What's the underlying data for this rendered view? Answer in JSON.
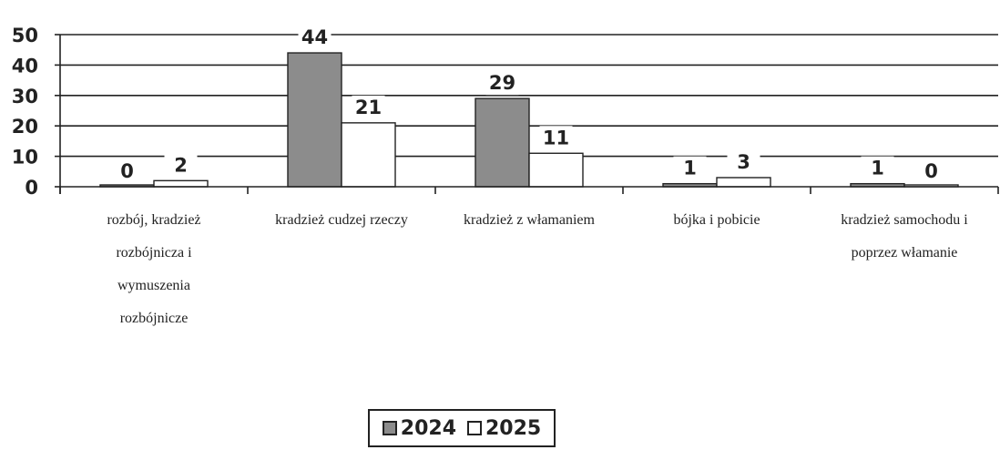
{
  "chart_data": {
    "type": "bar",
    "categories": [
      [
        "rozbój, kradzież",
        "rozbójnicza i",
        "wymuszenia",
        "rozbójnicze"
      ],
      [
        "kradzież cudzej rzeczy"
      ],
      [
        "kradzież z włamaniem"
      ],
      [
        "bójka i pobicie"
      ],
      [
        "kradzież samochodu i",
        "poprzez włamanie"
      ]
    ],
    "series": [
      {
        "name": "2024",
        "values": [
          0,
          44,
          29,
          1,
          1
        ],
        "color": "#8c8c8c"
      },
      {
        "name": "2025",
        "values": [
          2,
          21,
          11,
          3,
          0
        ],
        "color": "#ffffff"
      }
    ],
    "yticks": [
      "0",
      "10",
      "20",
      "30",
      "40",
      "50"
    ],
    "ylim": [
      0,
      50
    ],
    "grid": true,
    "legend_position": "bottom"
  }
}
